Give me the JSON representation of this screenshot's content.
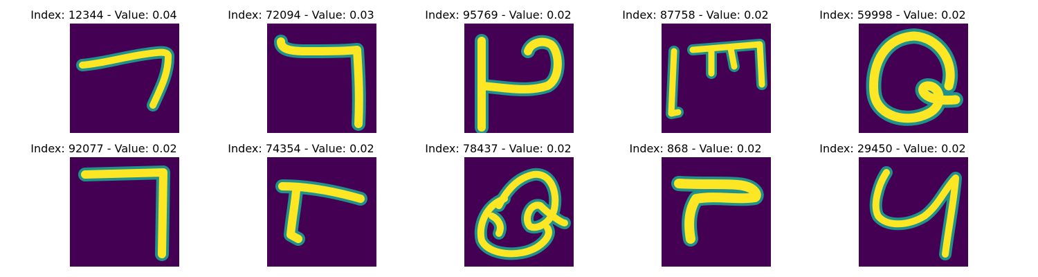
{
  "figure": {
    "panels": [
      {
        "title": "Index: 12344 - Value: 0.04"
      },
      {
        "title": "Index: 72094 - Value: 0.03"
      },
      {
        "title": "Index: 95769 - Value: 0.02"
      },
      {
        "title": "Index: 87758 - Value: 0.02"
      },
      {
        "title": "Index: 59998 - Value: 0.02"
      },
      {
        "title": "Index: 92077 - Value: 0.02"
      },
      {
        "title": "Index: 74354 - Value: 0.02"
      },
      {
        "title": "Index: 78437 - Value: 0.02"
      },
      {
        "title": "Index: 868 - Value: 0.02"
      },
      {
        "title": "Index: 29450 - Value: 0.02"
      }
    ]
  },
  "colors": {
    "background": "#440154",
    "stroke": "#fde725",
    "edge": "#21918c"
  }
}
